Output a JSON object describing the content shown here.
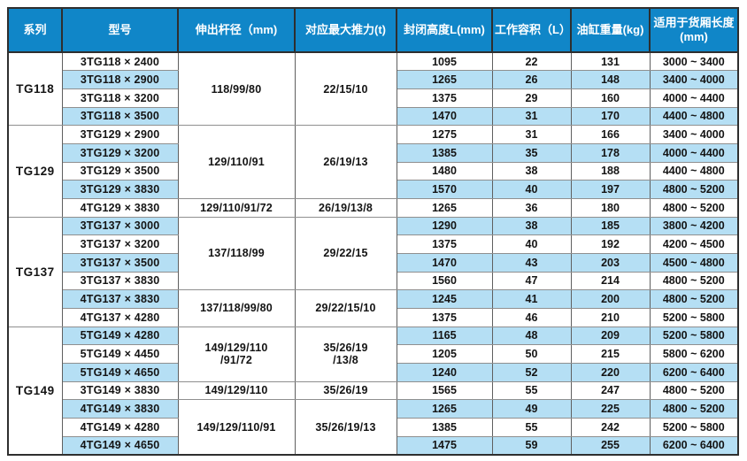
{
  "colors": {
    "header_bg": "#1086c8",
    "header_text": "#ffffff",
    "row_alt_bg": "#b5dff4",
    "row_bg": "#ffffff",
    "text": "#141414",
    "outer_border": "#2e2e2e"
  },
  "table": {
    "headers": [
      "系列",
      "型号",
      "伸出杆径（mm)",
      "对应最大推力(t)",
      "封闭高度L(mm)",
      "工作容积（L）",
      "油缸重量(kg)",
      "适用于货厢长度\n(mm)"
    ],
    "groups": [
      {
        "series": "TG118",
        "spans": [
          {
            "start": 0,
            "count": 4,
            "rod": "118/99/80",
            "thrust": "22/15/10"
          }
        ],
        "rows": [
          {
            "model": "3TG118 × 2400",
            "closed_height": "1095",
            "working_volume": "22",
            "cylinder_weight": "131",
            "cargo_length": "3000 ~ 3400"
          },
          {
            "model": "3TG118 × 2900",
            "closed_height": "1265",
            "working_volume": "26",
            "cylinder_weight": "148",
            "cargo_length": "3400 ~ 4000"
          },
          {
            "model": "3TG118 × 3200",
            "closed_height": "1375",
            "working_volume": "29",
            "cylinder_weight": "160",
            "cargo_length": "4000 ~ 4400"
          },
          {
            "model": "3TG118 × 3500",
            "closed_height": "1470",
            "working_volume": "31",
            "cylinder_weight": "170",
            "cargo_length": "4400 ~ 4800"
          }
        ]
      },
      {
        "series": "TG129",
        "spans": [
          {
            "start": 0,
            "count": 4,
            "rod": "129/110/91",
            "thrust": "26/19/13"
          },
          {
            "start": 4,
            "count": 1,
            "rod": "129/110/91/72",
            "thrust": "26/19/13/8"
          }
        ],
        "rows": [
          {
            "model": "3TG129 × 2900",
            "closed_height": "1275",
            "working_volume": "31",
            "cylinder_weight": "166",
            "cargo_length": "3400 ~ 4000"
          },
          {
            "model": "3TG129 × 3200",
            "closed_height": "1385",
            "working_volume": "35",
            "cylinder_weight": "178",
            "cargo_length": "4000 ~ 4400"
          },
          {
            "model": "3TG129 × 3500",
            "closed_height": "1480",
            "working_volume": "38",
            "cylinder_weight": "188",
            "cargo_length": "4400 ~ 4800"
          },
          {
            "model": "3TG129 × 3830",
            "closed_height": "1570",
            "working_volume": "40",
            "cylinder_weight": "197",
            "cargo_length": "4800 ~ 5200"
          },
          {
            "model": "4TG129 × 3830",
            "closed_height": "1265",
            "working_volume": "36",
            "cylinder_weight": "180",
            "cargo_length": "4800 ~ 5200"
          }
        ]
      },
      {
        "series": "TG137",
        "spans": [
          {
            "start": 0,
            "count": 4,
            "rod": "137/118/99",
            "thrust": "29/22/15"
          },
          {
            "start": 4,
            "count": 2,
            "rod": "137/118/99/80",
            "thrust": "29/22/15/10"
          }
        ],
        "rows": [
          {
            "model": "3TG137 × 3000",
            "closed_height": "1290",
            "working_volume": "38",
            "cylinder_weight": "185",
            "cargo_length": "3800 ~ 4200"
          },
          {
            "model": "3TG137 × 3200",
            "closed_height": "1375",
            "working_volume": "40",
            "cylinder_weight": "192",
            "cargo_length": "4200 ~ 4500"
          },
          {
            "model": "3TG137 × 3500",
            "closed_height": "1470",
            "working_volume": "43",
            "cylinder_weight": "203",
            "cargo_length": "4500 ~ 4800"
          },
          {
            "model": "3TG137 × 3830",
            "closed_height": "1560",
            "working_volume": "47",
            "cylinder_weight": "214",
            "cargo_length": "4800 ~ 5200"
          },
          {
            "model": "4TG137 × 3830",
            "closed_height": "1245",
            "working_volume": "41",
            "cylinder_weight": "200",
            "cargo_length": "4800 ~ 5200"
          },
          {
            "model": "4TG137 × 4280",
            "closed_height": "1375",
            "working_volume": "46",
            "cylinder_weight": "210",
            "cargo_length": "5200 ~ 5800"
          }
        ]
      },
      {
        "series": "TG149",
        "spans": [
          {
            "start": 0,
            "count": 3,
            "rod": "149/129/110\n/91/72",
            "thrust": "35/26/19\n/13/8"
          },
          {
            "start": 3,
            "count": 1,
            "rod": "149/129/110",
            "thrust": "35/26/19"
          },
          {
            "start": 4,
            "count": 3,
            "rod": "149/129/110/91",
            "thrust": "35/26/19/13"
          }
        ],
        "rows": [
          {
            "model": "5TG149 × 4280",
            "closed_height": "1165",
            "working_volume": "48",
            "cylinder_weight": "209",
            "cargo_length": "5200 ~ 5800"
          },
          {
            "model": "5TG149 × 4450",
            "closed_height": "1205",
            "working_volume": "50",
            "cylinder_weight": "215",
            "cargo_length": "5800 ~ 6200"
          },
          {
            "model": "5TG149 × 4650",
            "closed_height": "1240",
            "working_volume": "52",
            "cylinder_weight": "220",
            "cargo_length": "6200 ~ 6400"
          },
          {
            "model": "3TG149 × 3830",
            "closed_height": "1565",
            "working_volume": "55",
            "cylinder_weight": "247",
            "cargo_length": "4800 ~ 5200"
          },
          {
            "model": "4TG149 × 3830",
            "closed_height": "1265",
            "working_volume": "49",
            "cylinder_weight": "225",
            "cargo_length": "4800 ~ 5200"
          },
          {
            "model": "4TG149 × 4280",
            "closed_height": "1385",
            "working_volume": "55",
            "cylinder_weight": "242",
            "cargo_length": "5200 ~ 5800"
          },
          {
            "model": "4TG149 × 4650",
            "closed_height": "1475",
            "working_volume": "59",
            "cylinder_weight": "255",
            "cargo_length": "6200 ~ 6400"
          }
        ]
      }
    ]
  }
}
